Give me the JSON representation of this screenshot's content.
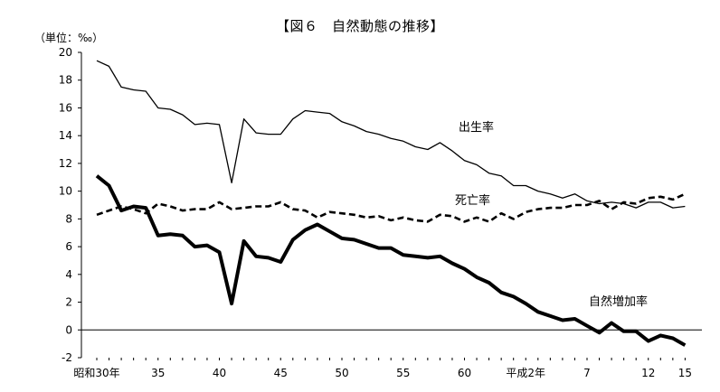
{
  "chart_data": {
    "type": "line",
    "title": "【図６　自然動態の推移】",
    "ylabel": "（単位：‰）",
    "ylim": [
      -2,
      20
    ],
    "yticks": [
      -2,
      0,
      2,
      4,
      6,
      8,
      10,
      12,
      14,
      16,
      18,
      20
    ],
    "x": [
      "昭和30",
      "31",
      "32",
      "33",
      "34",
      "35",
      "36",
      "37",
      "38",
      "39",
      "40",
      "41",
      "42",
      "43",
      "44",
      "45",
      "46",
      "47",
      "48",
      "49",
      "50",
      "51",
      "52",
      "53",
      "54",
      "55",
      "56",
      "57",
      "58",
      "59",
      "60",
      "61",
      "62",
      "63",
      "平成1",
      "2",
      "3",
      "4",
      "5",
      "6",
      "7",
      "8",
      "9",
      "10",
      "11",
      "12",
      "13",
      "14",
      "15"
    ],
    "xtick_labels": [
      "昭和30年",
      "35",
      "40",
      "45",
      "50",
      "55",
      "60",
      "平成2年",
      "7",
      "12",
      "15"
    ],
    "series": [
      {
        "name": "出生率",
        "style": "thin-solid",
        "values": [
          19.4,
          19.0,
          17.5,
          17.3,
          17.2,
          16.0,
          15.9,
          15.5,
          14.8,
          14.9,
          14.8,
          10.6,
          15.2,
          14.2,
          14.1,
          14.1,
          15.2,
          15.8,
          15.7,
          15.6,
          15.0,
          14.7,
          14.3,
          14.1,
          13.8,
          13.6,
          13.2,
          13.0,
          13.5,
          12.9,
          12.2,
          11.9,
          11.3,
          11.1,
          10.4,
          10.4,
          10.0,
          9.8,
          9.5,
          9.8,
          9.3,
          9.1,
          9.2,
          9.1,
          8.8,
          9.2,
          9.2,
          8.8,
          8.9
        ]
      },
      {
        "name": "死亡率",
        "style": "dashed",
        "values": [
          8.3,
          8.6,
          8.9,
          8.7,
          8.4,
          9.1,
          8.9,
          8.6,
          8.7,
          8.7,
          9.2,
          8.7,
          8.8,
          8.9,
          8.9,
          9.2,
          8.7,
          8.6,
          8.1,
          8.5,
          8.4,
          8.3,
          8.1,
          8.2,
          7.9,
          8.1,
          7.9,
          7.8,
          8.3,
          8.2,
          7.8,
          8.1,
          7.8,
          8.4,
          8.0,
          8.5,
          8.7,
          8.8,
          8.8,
          9.0,
          9.0,
          9.3,
          8.7,
          9.2,
          9.1,
          9.5,
          9.6,
          9.4,
          9.8
        ]
      },
      {
        "name": "自然増加率",
        "style": "thick-solid",
        "values": [
          11.1,
          10.4,
          8.6,
          8.9,
          8.8,
          6.8,
          6.9,
          6.8,
          6.0,
          6.1,
          5.6,
          1.9,
          6.4,
          5.3,
          5.2,
          4.9,
          6.5,
          7.2,
          7.6,
          7.1,
          6.6,
          6.5,
          6.2,
          5.9,
          5.9,
          5.4,
          5.3,
          5.2,
          5.3,
          4.8,
          4.4,
          3.8,
          3.4,
          2.7,
          2.4,
          1.9,
          1.3,
          1.0,
          0.7,
          0.8,
          0.3,
          -0.2,
          0.5,
          -0.1,
          -0.1,
          -0.8,
          -0.4,
          -0.6,
          -1.1
        ]
      }
    ],
    "zero_line": true,
    "grid": false,
    "legend": "inline labels"
  }
}
